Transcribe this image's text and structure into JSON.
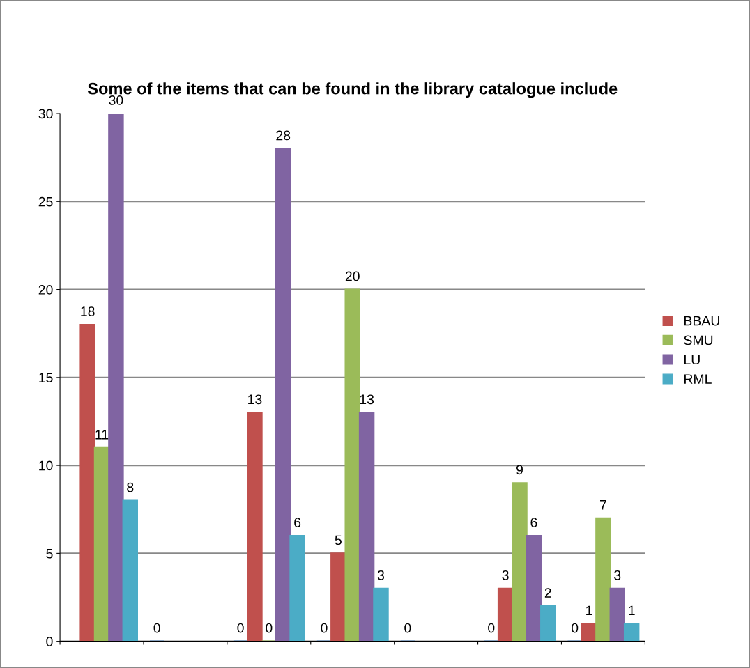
{
  "chart_data": {
    "type": "bar",
    "title": "Some of the items that can be found in the library catalogue include",
    "categories": [
      null,
      null,
      null,
      null,
      null,
      null,
      null
    ],
    "series": [
      {
        "color": "#4f81bd",
        "values": [
          null,
          0,
          0,
          0,
          0,
          0,
          0
        ]
      },
      {
        "name": "BBAU",
        "color": "#c0504d",
        "values": [
          18,
          null,
          13,
          5,
          null,
          3,
          1
        ]
      },
      {
        "name": "SMU",
        "color": "#9bbb59",
        "values": [
          11,
          null,
          0,
          20,
          null,
          9,
          7
        ]
      },
      {
        "name": "LU",
        "color": "#8064a2",
        "values": [
          30,
          null,
          28,
          13,
          null,
          6,
          3
        ]
      },
      {
        "name": "RML",
        "color": "#4bacc6",
        "values": [
          8,
          null,
          6,
          3,
          null,
          2,
          1
        ]
      }
    ],
    "ylim": [
      0,
      30
    ],
    "yticks": [
      0,
      5,
      10,
      15,
      20,
      25,
      30
    ],
    "grid": "y",
    "legend": "right",
    "data_labels": true
  }
}
